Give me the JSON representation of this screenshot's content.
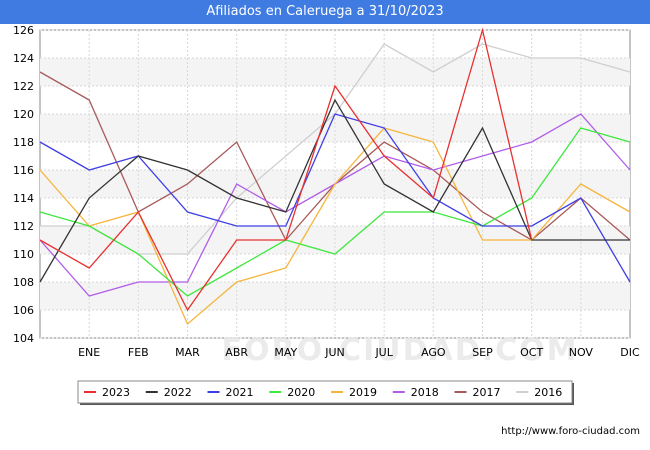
{
  "title": "Afiliados en Caleruega a 31/10/2023",
  "watermark": "FORO-CIUDAD.COM",
  "footer_url": "http://www.foro-ciudad.com",
  "chart_data": {
    "type": "line",
    "title": "Afiliados en Caleruega a 31/10/2023",
    "xlabel": "",
    "ylabel": "",
    "categories": [
      "",
      "ENE",
      "FEB",
      "MAR",
      "ABR",
      "MAY",
      "JUN",
      "JUL",
      "AGO",
      "SEP",
      "OCT",
      "NOV",
      "DIC"
    ],
    "ylim": [
      104,
      126
    ],
    "yticks": [
      104,
      106,
      108,
      110,
      112,
      114,
      116,
      118,
      120,
      122,
      124,
      126
    ],
    "grid": true,
    "legend_position": "bottom",
    "series": [
      {
        "name": "2023",
        "color": "#e8312f",
        "values": [
          111,
          109,
          113,
          106,
          111,
          111,
          122,
          117,
          114,
          126,
          111,
          null,
          null
        ]
      },
      {
        "name": "2022",
        "color": "#333333",
        "values": [
          108,
          114,
          117,
          116,
          114,
          113,
          121,
          115,
          113,
          119,
          111,
          111,
          111
        ]
      },
      {
        "name": "2021",
        "color": "#3f3fe6",
        "values": [
          118,
          116,
          117,
          113,
          112,
          112,
          120,
          119,
          114,
          112,
          112,
          114,
          108
        ]
      },
      {
        "name": "2020",
        "color": "#3fe83f",
        "values": [
          113,
          112,
          110,
          107,
          109,
          111,
          110,
          113,
          113,
          112,
          114,
          119,
          118
        ]
      },
      {
        "name": "2019",
        "color": "#f5b53d",
        "values": [
          116,
          112,
          113,
          105,
          108,
          109,
          115,
          119,
          118,
          111,
          111,
          115,
          113
        ]
      },
      {
        "name": "2018",
        "color": "#b05ee8",
        "values": [
          111,
          107,
          108,
          108,
          115,
          113,
          115,
          117,
          116,
          117,
          118,
          120,
          116
        ]
      },
      {
        "name": "2017",
        "color": "#a85a5a",
        "values": [
          123,
          121,
          113,
          115,
          118,
          111,
          115,
          118,
          116,
          113,
          111,
          114,
          111
        ]
      },
      {
        "name": "2016",
        "color": "#cfcfcf",
        "values": [
          112,
          112,
          110,
          110,
          114,
          117,
          120,
          125,
          123,
          125,
          124,
          124,
          123
        ]
      }
    ]
  }
}
